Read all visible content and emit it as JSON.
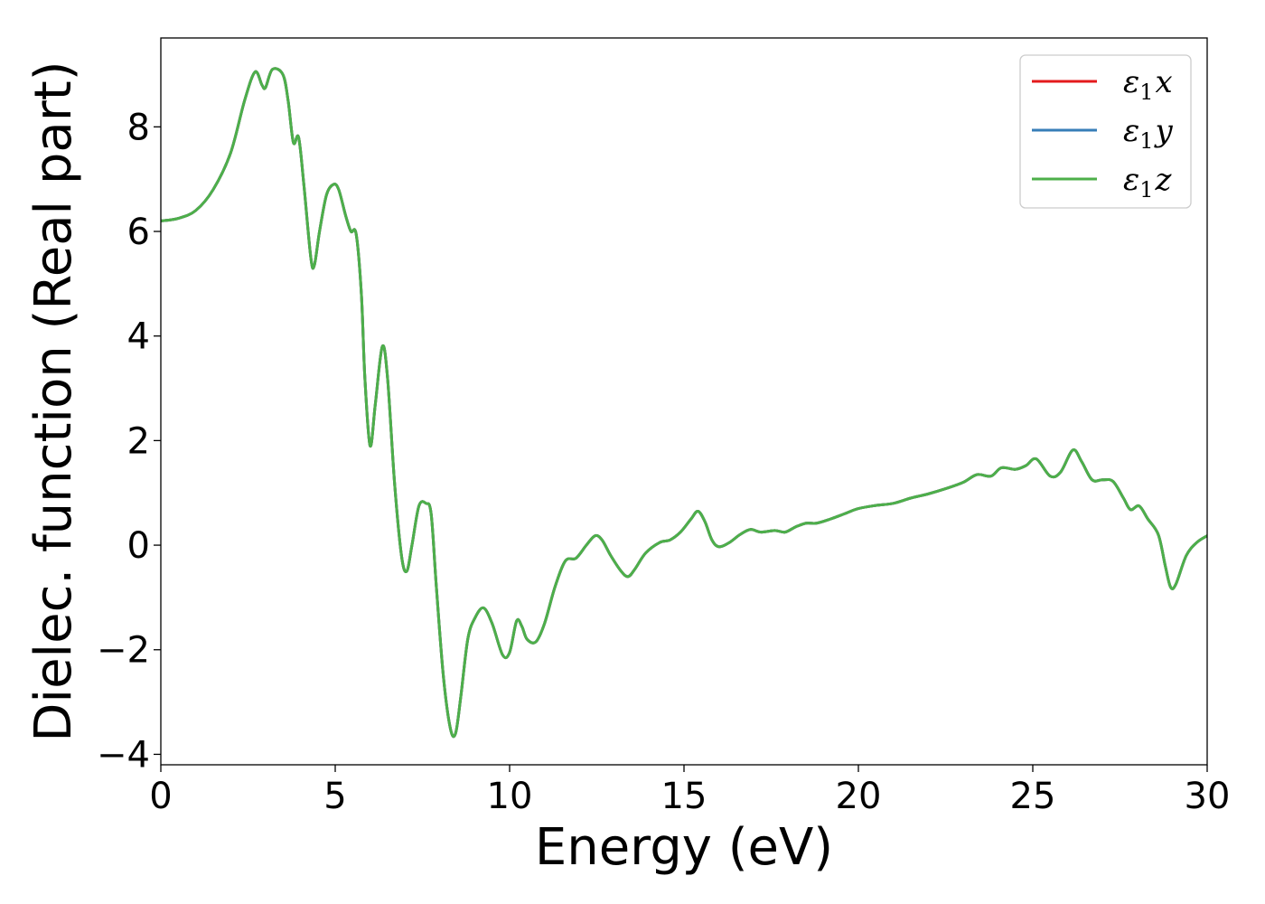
{
  "chart_data": {
    "type": "line",
    "title": "",
    "xlabel": "Energy (eV)",
    "ylabel": "Dielec. function (Real part)",
    "xlim": [
      0,
      30
    ],
    "ylim": [
      -4.2,
      9.7
    ],
    "xticks": [
      0,
      5,
      10,
      15,
      20,
      25,
      30
    ],
    "yticks": [
      -4,
      -2,
      0,
      2,
      4,
      6,
      8
    ],
    "xtick_labels": [
      "0",
      "5",
      "10",
      "15",
      "20",
      "25",
      "30"
    ],
    "ytick_labels": [
      "−4",
      "−2",
      "0",
      "2",
      "4",
      "6",
      "8"
    ],
    "grid": false,
    "legend_position": "top-right",
    "series": [
      {
        "name": "ε₁x",
        "legend": {
          "base": "ε",
          "sub": "1",
          "var": "x"
        },
        "color": "#e41a1c",
        "points": [
          [
            0,
            6.2
          ],
          [
            0.5,
            6.25
          ],
          [
            1.0,
            6.4
          ],
          [
            1.5,
            6.8
          ],
          [
            2.0,
            7.5
          ],
          [
            2.4,
            8.5
          ],
          [
            2.7,
            9.05
          ],
          [
            2.9,
            8.8
          ],
          [
            3.0,
            8.75
          ],
          [
            3.2,
            9.1
          ],
          [
            3.5,
            9.0
          ],
          [
            3.65,
            8.5
          ],
          [
            3.8,
            7.7
          ],
          [
            3.95,
            7.8
          ],
          [
            4.1,
            6.9
          ],
          [
            4.3,
            5.5
          ],
          [
            4.4,
            5.35
          ],
          [
            4.55,
            6.0
          ],
          [
            4.75,
            6.7
          ],
          [
            4.95,
            6.9
          ],
          [
            5.1,
            6.8
          ],
          [
            5.3,
            6.3
          ],
          [
            5.45,
            6.0
          ],
          [
            5.6,
            5.95
          ],
          [
            5.75,
            4.8
          ],
          [
            5.85,
            3.2
          ],
          [
            6.0,
            1.9
          ],
          [
            6.15,
            2.7
          ],
          [
            6.35,
            3.8
          ],
          [
            6.5,
            3.2
          ],
          [
            6.7,
            1.2
          ],
          [
            6.9,
            -0.2
          ],
          [
            7.05,
            -0.5
          ],
          [
            7.2,
            0.0
          ],
          [
            7.4,
            0.75
          ],
          [
            7.6,
            0.8
          ],
          [
            7.75,
            0.6
          ],
          [
            7.9,
            -0.8
          ],
          [
            8.1,
            -2.5
          ],
          [
            8.3,
            -3.5
          ],
          [
            8.45,
            -3.6
          ],
          [
            8.6,
            -2.9
          ],
          [
            8.8,
            -1.8
          ],
          [
            9.0,
            -1.4
          ],
          [
            9.25,
            -1.2
          ],
          [
            9.5,
            -1.5
          ],
          [
            9.8,
            -2.1
          ],
          [
            10.0,
            -2.05
          ],
          [
            10.2,
            -1.45
          ],
          [
            10.35,
            -1.55
          ],
          [
            10.5,
            -1.8
          ],
          [
            10.75,
            -1.85
          ],
          [
            11.0,
            -1.5
          ],
          [
            11.3,
            -0.8
          ],
          [
            11.6,
            -0.3
          ],
          [
            11.9,
            -0.25
          ],
          [
            12.2,
            0.0
          ],
          [
            12.45,
            0.18
          ],
          [
            12.65,
            0.1
          ],
          [
            12.9,
            -0.2
          ],
          [
            13.2,
            -0.5
          ],
          [
            13.4,
            -0.6
          ],
          [
            13.6,
            -0.45
          ],
          [
            13.9,
            -0.15
          ],
          [
            14.3,
            0.05
          ],
          [
            14.6,
            0.1
          ],
          [
            14.9,
            0.25
          ],
          [
            15.2,
            0.5
          ],
          [
            15.4,
            0.65
          ],
          [
            15.6,
            0.45
          ],
          [
            15.8,
            0.1
          ],
          [
            16.0,
            -0.03
          ],
          [
            16.3,
            0.05
          ],
          [
            16.6,
            0.2
          ],
          [
            16.9,
            0.3
          ],
          [
            17.2,
            0.25
          ],
          [
            17.6,
            0.28
          ],
          [
            17.9,
            0.25
          ],
          [
            18.2,
            0.35
          ],
          [
            18.5,
            0.42
          ],
          [
            18.8,
            0.42
          ],
          [
            19.2,
            0.5
          ],
          [
            19.6,
            0.6
          ],
          [
            20.0,
            0.7
          ],
          [
            20.5,
            0.76
          ],
          [
            21.0,
            0.8
          ],
          [
            21.5,
            0.9
          ],
          [
            22.0,
            0.98
          ],
          [
            22.5,
            1.08
          ],
          [
            23.0,
            1.2
          ],
          [
            23.4,
            1.35
          ],
          [
            23.8,
            1.32
          ],
          [
            24.1,
            1.48
          ],
          [
            24.5,
            1.45
          ],
          [
            24.8,
            1.52
          ],
          [
            25.1,
            1.65
          ],
          [
            25.5,
            1.32
          ],
          [
            25.8,
            1.4
          ],
          [
            26.15,
            1.82
          ],
          [
            26.4,
            1.6
          ],
          [
            26.7,
            1.25
          ],
          [
            27.0,
            1.25
          ],
          [
            27.3,
            1.22
          ],
          [
            27.6,
            0.9
          ],
          [
            27.8,
            0.68
          ],
          [
            28.05,
            0.75
          ],
          [
            28.3,
            0.5
          ],
          [
            28.6,
            0.2
          ],
          [
            28.8,
            -0.4
          ],
          [
            28.95,
            -0.8
          ],
          [
            29.1,
            -0.75
          ],
          [
            29.4,
            -0.2
          ],
          [
            29.7,
            0.05
          ],
          [
            30.0,
            0.18
          ]
        ]
      },
      {
        "name": "ε₁y",
        "legend": {
          "base": "ε",
          "sub": "1",
          "var": "y"
        },
        "color": "#377eb8",
        "same_as": 0
      },
      {
        "name": "ε₁z",
        "legend": {
          "base": "ε",
          "sub": "1",
          "var": "z"
        },
        "color": "#4daf4a",
        "same_as": 0
      }
    ]
  }
}
